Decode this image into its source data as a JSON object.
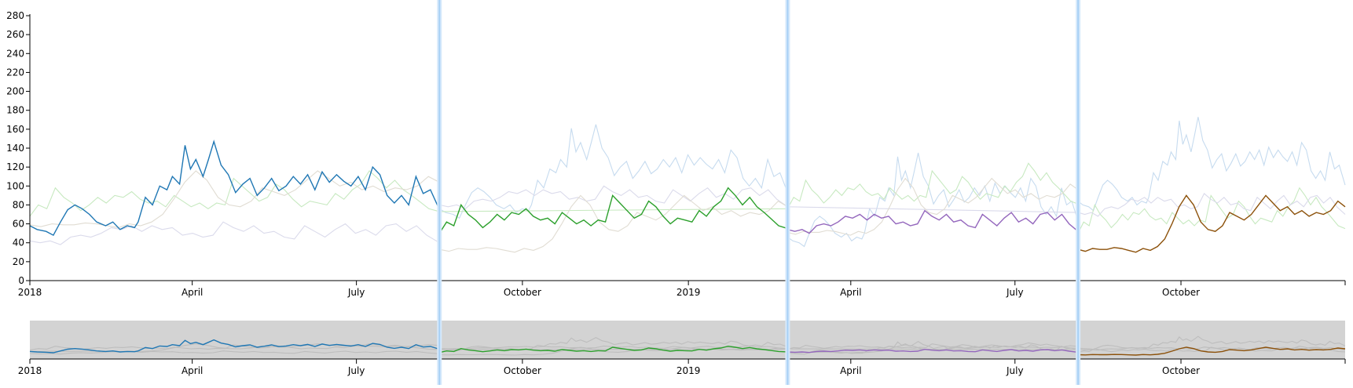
{
  "chart_data": {
    "type": "line",
    "x_domain": [
      "2018-01-01",
      "2019-12-31"
    ],
    "y_range": [
      0,
      280
    ],
    "y_ticks": [
      0,
      20,
      40,
      60,
      80,
      100,
      120,
      140,
      160,
      180,
      200,
      220,
      240,
      260,
      280
    ],
    "x_tick_labels": [
      {
        "date": "2018-01-01",
        "label": "2018"
      },
      {
        "date": "2018-04-01",
        "label": "April"
      },
      {
        "date": "2018-07-01",
        "label": "July"
      },
      {
        "date": "2018-10-01",
        "label": "October"
      },
      {
        "date": "2019-01-01",
        "label": "2019"
      },
      {
        "date": "2019-04-01",
        "label": "April"
      },
      {
        "date": "2019-07-01",
        "label": "July"
      },
      {
        "date": "2019-10-01",
        "label": "October"
      }
    ],
    "segment_boundaries": [
      "2018-08-16",
      "2019-02-25",
      "2019-08-05"
    ],
    "series": [
      {
        "color": "#1f77b4",
        "ghost_color": "#c6dbef",
        "points": [
          [
            "2018-01-01",
            58
          ],
          [
            "2018-01-05",
            54
          ],
          [
            "2018-01-10",
            52
          ],
          [
            "2018-01-14",
            48
          ],
          [
            "2018-01-18",
            62
          ],
          [
            "2018-01-22",
            75
          ],
          [
            "2018-01-26",
            80
          ],
          [
            "2018-01-30",
            76
          ],
          [
            "2018-02-03",
            70
          ],
          [
            "2018-02-07",
            62
          ],
          [
            "2018-02-12",
            58
          ],
          [
            "2018-02-16",
            62
          ],
          [
            "2018-02-20",
            54
          ],
          [
            "2018-02-24",
            58
          ],
          [
            "2018-02-28",
            56
          ],
          [
            "2018-03-02",
            62
          ],
          [
            "2018-03-06",
            88
          ],
          [
            "2018-03-10",
            80
          ],
          [
            "2018-03-14",
            100
          ],
          [
            "2018-03-18",
            96
          ],
          [
            "2018-03-21",
            110
          ],
          [
            "2018-03-25",
            102
          ],
          [
            "2018-03-28",
            143
          ],
          [
            "2018-03-31",
            118
          ],
          [
            "2018-04-03",
            128
          ],
          [
            "2018-04-07",
            110
          ],
          [
            "2018-04-10",
            128
          ],
          [
            "2018-04-13",
            147
          ],
          [
            "2018-04-17",
            122
          ],
          [
            "2018-04-21",
            112
          ],
          [
            "2018-04-25",
            93
          ],
          [
            "2018-04-29",
            102
          ],
          [
            "2018-05-03",
            108
          ],
          [
            "2018-05-07",
            90
          ],
          [
            "2018-05-11",
            98
          ],
          [
            "2018-05-15",
            108
          ],
          [
            "2018-05-19",
            95
          ],
          [
            "2018-05-23",
            100
          ],
          [
            "2018-05-27",
            110
          ],
          [
            "2018-05-31",
            102
          ],
          [
            "2018-06-04",
            112
          ],
          [
            "2018-06-08",
            96
          ],
          [
            "2018-06-12",
            115
          ],
          [
            "2018-06-16",
            104
          ],
          [
            "2018-06-20",
            112
          ],
          [
            "2018-06-24",
            105
          ],
          [
            "2018-06-28",
            100
          ],
          [
            "2018-07-02",
            110
          ],
          [
            "2018-07-06",
            96
          ],
          [
            "2018-07-10",
            120
          ],
          [
            "2018-07-14",
            112
          ],
          [
            "2018-07-18",
            90
          ],
          [
            "2018-07-22",
            82
          ],
          [
            "2018-07-26",
            90
          ],
          [
            "2018-07-30",
            80
          ],
          [
            "2018-08-03",
            110
          ],
          [
            "2018-08-07",
            92
          ],
          [
            "2018-08-11",
            96
          ],
          [
            "2018-08-16",
            75
          ]
        ]
      },
      {
        "color": "#2ca02c",
        "ghost_color": "#c7e9c0",
        "points": [
          [
            "2018-08-16",
            50
          ],
          [
            "2018-08-20",
            62
          ],
          [
            "2018-08-24",
            58
          ],
          [
            "2018-08-28",
            80
          ],
          [
            "2018-09-01",
            70
          ],
          [
            "2018-09-05",
            64
          ],
          [
            "2018-09-09",
            56
          ],
          [
            "2018-09-13",
            62
          ],
          [
            "2018-09-17",
            70
          ],
          [
            "2018-09-21",
            64
          ],
          [
            "2018-09-25",
            72
          ],
          [
            "2018-09-29",
            70
          ],
          [
            "2018-10-03",
            76
          ],
          [
            "2018-10-07",
            68
          ],
          [
            "2018-10-11",
            64
          ],
          [
            "2018-10-15",
            66
          ],
          [
            "2018-10-19",
            60
          ],
          [
            "2018-10-23",
            72
          ],
          [
            "2018-10-27",
            66
          ],
          [
            "2018-10-31",
            60
          ],
          [
            "2018-11-04",
            64
          ],
          [
            "2018-11-08",
            58
          ],
          [
            "2018-11-12",
            64
          ],
          [
            "2018-11-16",
            62
          ],
          [
            "2018-11-20",
            90
          ],
          [
            "2018-11-24",
            82
          ],
          [
            "2018-11-28",
            74
          ],
          [
            "2018-12-02",
            66
          ],
          [
            "2018-12-06",
            70
          ],
          [
            "2018-12-10",
            84
          ],
          [
            "2018-12-14",
            78
          ],
          [
            "2018-12-18",
            68
          ],
          [
            "2018-12-22",
            60
          ],
          [
            "2018-12-26",
            66
          ],
          [
            "2018-12-30",
            64
          ],
          [
            "2019-01-03",
            62
          ],
          [
            "2019-01-07",
            74
          ],
          [
            "2019-01-11",
            68
          ],
          [
            "2019-01-15",
            78
          ],
          [
            "2019-01-19",
            84
          ],
          [
            "2019-01-23",
            98
          ],
          [
            "2019-01-27",
            90
          ],
          [
            "2019-01-31",
            80
          ],
          [
            "2019-02-04",
            88
          ],
          [
            "2019-02-08",
            78
          ],
          [
            "2019-02-12",
            72
          ],
          [
            "2019-02-16",
            65
          ],
          [
            "2019-02-20",
            58
          ],
          [
            "2019-02-25",
            55
          ]
        ]
      },
      {
        "color": "#9467bd",
        "ghost_color": "#dadaeb",
        "points": [
          [
            "2019-02-25",
            54
          ],
          [
            "2019-03-01",
            52
          ],
          [
            "2019-03-05",
            54
          ],
          [
            "2019-03-09",
            50
          ],
          [
            "2019-03-13",
            58
          ],
          [
            "2019-03-17",
            60
          ],
          [
            "2019-03-21",
            58
          ],
          [
            "2019-03-25",
            62
          ],
          [
            "2019-03-29",
            68
          ],
          [
            "2019-04-02",
            66
          ],
          [
            "2019-04-06",
            70
          ],
          [
            "2019-04-10",
            64
          ],
          [
            "2019-04-14",
            70
          ],
          [
            "2019-04-18",
            66
          ],
          [
            "2019-04-22",
            68
          ],
          [
            "2019-04-26",
            60
          ],
          [
            "2019-04-30",
            62
          ],
          [
            "2019-05-04",
            58
          ],
          [
            "2019-05-08",
            60
          ],
          [
            "2019-05-12",
            74
          ],
          [
            "2019-05-16",
            68
          ],
          [
            "2019-05-20",
            64
          ],
          [
            "2019-05-24",
            70
          ],
          [
            "2019-05-28",
            62
          ],
          [
            "2019-06-01",
            64
          ],
          [
            "2019-06-05",
            58
          ],
          [
            "2019-06-09",
            56
          ],
          [
            "2019-06-13",
            70
          ],
          [
            "2019-06-17",
            64
          ],
          [
            "2019-06-21",
            58
          ],
          [
            "2019-06-25",
            66
          ],
          [
            "2019-06-29",
            72
          ],
          [
            "2019-07-03",
            62
          ],
          [
            "2019-07-07",
            66
          ],
          [
            "2019-07-11",
            60
          ],
          [
            "2019-07-15",
            70
          ],
          [
            "2019-07-19",
            72
          ],
          [
            "2019-07-23",
            64
          ],
          [
            "2019-07-27",
            70
          ],
          [
            "2019-07-31",
            60
          ],
          [
            "2019-08-05",
            52
          ]
        ]
      },
      {
        "color": "#8c510a",
        "ghost_color": "#e0dcd2",
        "points": [
          [
            "2019-08-05",
            33
          ],
          [
            "2019-08-09",
            31
          ],
          [
            "2019-08-13",
            34
          ],
          [
            "2019-08-17",
            33
          ],
          [
            "2019-08-21",
            33
          ],
          [
            "2019-08-25",
            35
          ],
          [
            "2019-08-29",
            34
          ],
          [
            "2019-09-02",
            32
          ],
          [
            "2019-09-06",
            30
          ],
          [
            "2019-09-10",
            34
          ],
          [
            "2019-09-14",
            32
          ],
          [
            "2019-09-18",
            36
          ],
          [
            "2019-09-22",
            44
          ],
          [
            "2019-09-26",
            60
          ],
          [
            "2019-09-30",
            78
          ],
          [
            "2019-10-04",
            90
          ],
          [
            "2019-10-08",
            80
          ],
          [
            "2019-10-12",
            62
          ],
          [
            "2019-10-16",
            54
          ],
          [
            "2019-10-20",
            52
          ],
          [
            "2019-10-24",
            58
          ],
          [
            "2019-10-28",
            72
          ],
          [
            "2019-11-01",
            68
          ],
          [
            "2019-11-05",
            64
          ],
          [
            "2019-11-09",
            70
          ],
          [
            "2019-11-13",
            80
          ],
          [
            "2019-11-17",
            90
          ],
          [
            "2019-11-21",
            82
          ],
          [
            "2019-11-25",
            74
          ],
          [
            "2019-11-29",
            78
          ],
          [
            "2019-12-03",
            70
          ],
          [
            "2019-12-07",
            74
          ],
          [
            "2019-12-11",
            68
          ],
          [
            "2019-12-15",
            72
          ],
          [
            "2019-12-19",
            70
          ],
          [
            "2019-12-23",
            74
          ],
          [
            "2019-12-27",
            84
          ],
          [
            "2019-12-31",
            78
          ]
        ]
      }
    ],
    "grid": false
  }
}
